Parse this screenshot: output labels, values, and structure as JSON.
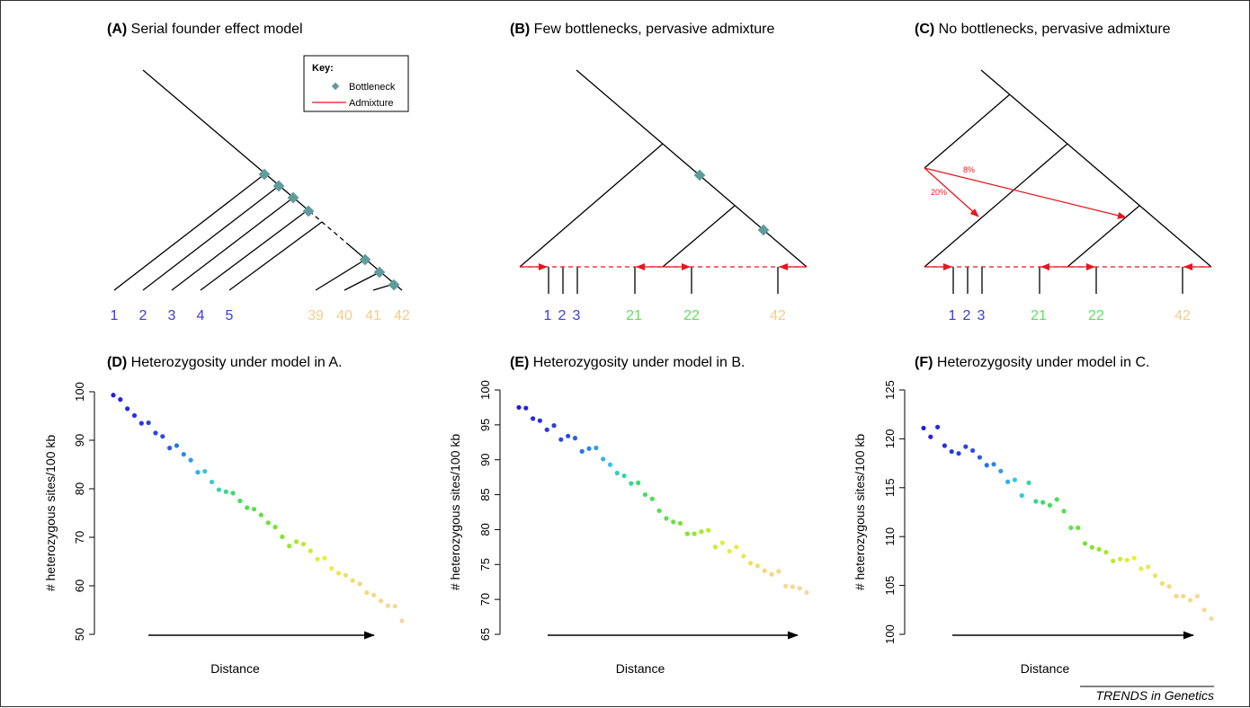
{
  "colors": {
    "bottleneck": "#5f9c9c",
    "admixture": "#e5171f",
    "line": "#000000"
  },
  "key": {
    "title": "Key:",
    "bottleneck": "Bottleneck",
    "admixture": "Admixture"
  },
  "trees": [
    {
      "prefix": "(A)",
      "title": "Serial founder effect model",
      "labels": [
        {
          "text": "1",
          "color": "#3a3ae0"
        },
        {
          "text": "2",
          "color": "#3a3ae0"
        },
        {
          "text": "3",
          "color": "#3a3ae0"
        },
        {
          "text": "4",
          "color": "#3a3ae0"
        },
        {
          "text": "5",
          "color": "#3a3ae0"
        },
        {
          "text": "39",
          "color": "#f2cc8f"
        },
        {
          "text": "40",
          "color": "#f2cc8f"
        },
        {
          "text": "41",
          "color": "#f2cc8f"
        },
        {
          "text": "42",
          "color": "#f2cc8f"
        }
      ]
    },
    {
      "prefix": "(B)",
      "title": "Few bottlenecks, pervasive admixture",
      "labels": [
        {
          "text": "1",
          "color": "#3a3ae0"
        },
        {
          "text": "2",
          "color": "#3a3ae0"
        },
        {
          "text": "3",
          "color": "#3a3ae0"
        },
        {
          "text": "21",
          "color": "#5de05d"
        },
        {
          "text": "22",
          "color": "#5de05d"
        },
        {
          "text": "42",
          "color": "#f2cc8f"
        }
      ]
    },
    {
      "prefix": "(C)",
      "title": "No bottlenecks, pervasive admixture",
      "labels": [
        {
          "text": "1",
          "color": "#3a3ae0"
        },
        {
          "text": "2",
          "color": "#3a3ae0"
        },
        {
          "text": "3",
          "color": "#3a3ae0"
        },
        {
          "text": "21",
          "color": "#5de05d"
        },
        {
          "text": "22",
          "color": "#5de05d"
        },
        {
          "text": "42",
          "color": "#f2cc8f"
        }
      ],
      "admixture_pcts": [
        "8%",
        "20%"
      ]
    }
  ],
  "chart_data": [
    {
      "type": "scatter",
      "prefix": "(D)",
      "title": "Heterozygosity under model in A.",
      "xlabel": "Distance",
      "ylabel": "# heterozygous sites/100 kb",
      "ylim": [
        50,
        100
      ],
      "yticks": [
        "50",
        "60",
        "70",
        "80",
        "90",
        "100"
      ],
      "y": [
        99.3,
        98.4,
        96.5,
        95.1,
        93.5,
        93.6,
        91.5,
        90.8,
        88.4,
        88.9,
        87.1,
        85.9,
        83.4,
        83.6,
        81.4,
        79.8,
        79.4,
        79.1,
        77.5,
        76.1,
        75.8,
        74.6,
        73.0,
        72.1,
        70.1,
        68.2,
        69.1,
        68.6,
        67.2,
        65.5,
        65.7,
        63.6,
        62.6,
        62.2,
        61.1,
        60.4,
        58.6,
        58.1,
        56.9,
        55.9,
        55.8,
        52.8
      ]
    },
    {
      "type": "scatter",
      "prefix": "(E)",
      "title": "Heterozygosity under model in B.",
      "xlabel": "Distance",
      "ylabel": "# heterozygous sites/100 kb",
      "ylim": [
        65,
        100
      ],
      "yticks": [
        "65",
        "70",
        "75",
        "80",
        "85",
        "90",
        "95",
        "100"
      ],
      "y": [
        97.5,
        97.4,
        95.9,
        95.6,
        94.3,
        94.9,
        92.9,
        93.4,
        93.1,
        91.2,
        91.6,
        91.7,
        90.1,
        89.3,
        88.1,
        87.7,
        86.6,
        86.7,
        85.0,
        84.4,
        82.7,
        81.6,
        81.1,
        80.9,
        79.4,
        79.4,
        79.7,
        79.9,
        77.5,
        78.1,
        76.9,
        77.5,
        76.2,
        75.2,
        74.8,
        74.1,
        73.6,
        74.0,
        71.9,
        71.8,
        71.6,
        71.0
      ]
    },
    {
      "type": "scatter",
      "prefix": "(F)",
      "title": "Heterozygosity under model in C.",
      "xlabel": "Distance",
      "ylabel": "# heterozygous sites/100 kb",
      "ylim": [
        100,
        125
      ],
      "yticks": [
        "100",
        "105",
        "110",
        "115",
        "120",
        "125"
      ],
      "y": [
        121.1,
        120.2,
        121.2,
        119.3,
        118.7,
        118.5,
        119.2,
        118.8,
        118.1,
        117.3,
        117.4,
        116.7,
        115.6,
        115.8,
        114.2,
        115.5,
        113.6,
        113.5,
        113.2,
        113.8,
        112.6,
        110.9,
        110.9,
        109.3,
        108.9,
        108.7,
        108.4,
        107.5,
        107.7,
        107.6,
        107.8,
        106.7,
        106.9,
        106.0,
        105.2,
        104.9,
        103.9,
        103.9,
        103.5,
        103.9,
        102.5,
        101.6
      ]
    }
  ],
  "footer": "TRENDS in Genetics"
}
